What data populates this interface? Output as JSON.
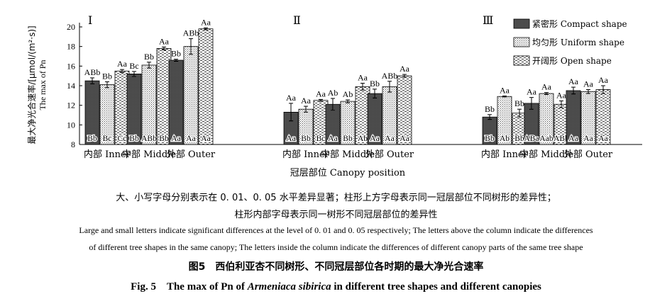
{
  "chart_data": {
    "type": "bar",
    "panels": [
      "Ⅰ",
      "Ⅱ",
      "Ⅲ"
    ],
    "categories": [
      "内部 Inner",
      "中部 Middle",
      "外部 Outer"
    ],
    "xlabel": "冠层部位 Canopy position",
    "ylabel_zh": "最大净光合速率/[μmol/(m²·s)]",
    "ylabel_en": "The max of Pn",
    "ylim": [
      8,
      20
    ],
    "yticks": [
      8,
      10,
      12,
      14,
      16,
      18,
      20
    ],
    "legend_position": "top-right",
    "series": [
      {
        "name": "紧密形 Compact shape",
        "pattern": "dense",
        "values": [
          [
            14.5,
            15.2,
            16.6
          ],
          [
            11.3,
            12.1,
            13.2
          ],
          [
            10.8,
            12.2,
            13.5
          ]
        ],
        "errors": [
          [
            0.3,
            0.25,
            0.1
          ],
          [
            0.9,
            0.6,
            0.45
          ],
          [
            0.25,
            0.6,
            0.35
          ]
        ],
        "top_labels": [
          [
            "ABb",
            "Bc",
            "Bb"
          ],
          [
            "Aa",
            "Ab",
            "Bb"
          ],
          [
            "Bb",
            "Aa",
            "Aa"
          ]
        ],
        "inner_labels": [
          [
            "Bb",
            "Bb",
            "Aa"
          ],
          [
            "Aa",
            "Aa",
            "Aa"
          ],
          [
            "Bb",
            "ABa",
            "Aa"
          ]
        ]
      },
      {
        "name": "均匀形 Uniform shape",
        "pattern": "dots",
        "values": [
          [
            14.1,
            16.1,
            18.0
          ],
          [
            11.6,
            12.4,
            13.9
          ],
          [
            12.9,
            13.2,
            13.4
          ]
        ],
        "errors": [
          [
            0.3,
            0.3,
            0.8
          ],
          [
            0.3,
            0.15,
            0.55
          ],
          [
            0.05,
            0.1,
            0.2
          ]
        ],
        "top_labels": [
          [
            "Bb",
            "Bb",
            "ABb"
          ],
          [
            "Aa",
            "Ab",
            "ABb"
          ],
          [
            "Aa",
            "Aa",
            "Aa"
          ]
        ],
        "inner_labels": [
          [
            "Bc",
            "ABb",
            "Aa"
          ],
          [
            "Bb",
            "Bb",
            "Aa"
          ],
          [
            "Ab",
            "Aab",
            "Aa"
          ]
        ]
      },
      {
        "name": "开阔形 Open shape",
        "pattern": "dashes",
        "values": [
          [
            15.5,
            17.8,
            19.8
          ],
          [
            12.5,
            13.9,
            15.0
          ],
          [
            11.2,
            12.1,
            13.6
          ]
        ],
        "errors": [
          [
            0.15,
            0.15,
            0.1
          ],
          [
            0.1,
            0.35,
            0.15
          ],
          [
            0.4,
            0.35,
            0.4
          ]
        ],
        "top_labels": [
          [
            "Aa",
            "Aa",
            "Aa"
          ],
          [
            "Aa",
            "Aa",
            "Aa"
          ],
          [
            "Bb",
            "Aa",
            "Aa"
          ]
        ],
        "inner_labels": [
          [
            "Cc",
            "Bb",
            "Aa"
          ],
          [
            "Bc",
            "Ab",
            "Aa"
          ],
          [
            "Bb",
            "ABb",
            "Aa"
          ]
        ]
      }
    ]
  },
  "caption": {
    "note_zh_1": "大、小写字母分别表示在 0. 01、0. 05 水平差异显著；柱形上方字母表示同一冠层部位不同树形的差异性；",
    "note_zh_2": "柱形内部字母表示同一树形不同冠层部位的差异性",
    "note_en_1": "Large and small letters indicate significant  differences at the level of 0. 01 and 0. 05 respectively; The letters above the column indicate the differences",
    "note_en_2": "of different tree shapes in the same canopy; The letters inside the column indicate the differences of different canopy parts of the same tree shape",
    "title_zh": "图5　西伯利亚杏不同树形、不同冠层部位各时期的最大净光合速率",
    "title_en_prefix": "Fig. 5　The max of Pn of ",
    "title_en_species": "Armeniaca sibirica",
    "title_en_suffix": " in different tree shapes and different canopies"
  }
}
